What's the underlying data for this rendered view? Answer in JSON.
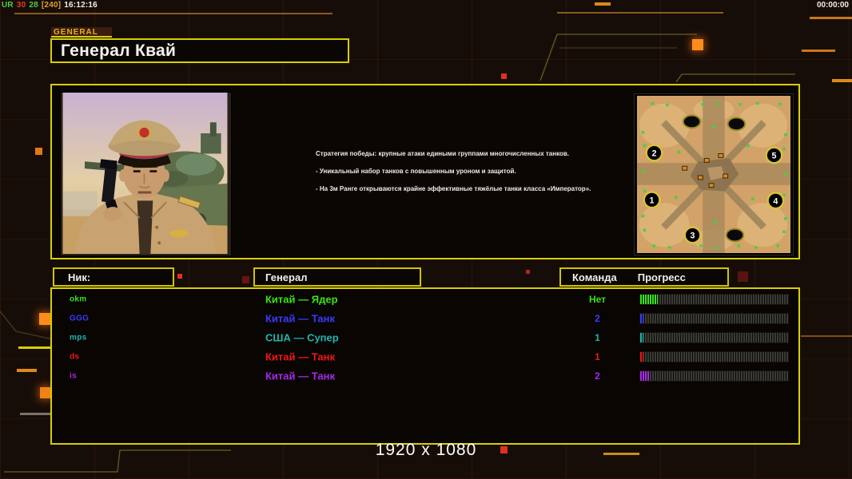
{
  "hud": {
    "stats": [
      {
        "text": "UR",
        "color": "#49d23c"
      },
      {
        "text": "30",
        "color": "#e23b22"
      },
      {
        "text": "28",
        "color": "#49d23c"
      },
      {
        "text": "[240]",
        "color": "#e2a12a"
      },
      {
        "text": "16:12:16",
        "color": "#f2ede6"
      }
    ],
    "timer": "00:00:00"
  },
  "header": {
    "tab_label": "GENERAL",
    "title": "Генерал Квай"
  },
  "profile": {
    "description": [
      "Стратегия победы: крупные атаки едиными группами многочисленных танков.",
      "- Уникальный набор танков с повышенным уроном и защитой.",
      "- На 3м Ранге открываются крайне эффективные тяжёлые танки класса «Император»."
    ],
    "minimap_spots": [
      "1",
      "2",
      "3",
      "4",
      "5"
    ]
  },
  "table": {
    "headers": {
      "nick": "Ник:",
      "general": "Генерал",
      "team": "Команда",
      "progress": "Прогресс"
    },
    "rows": [
      {
        "nick": "okm",
        "general": "Китай — Ядер",
        "team": "Нет",
        "color": "#38e418",
        "progress_pct": 12
      },
      {
        "nick": "GGG",
        "general": "Китай — Танк",
        "team": "2",
        "color": "#3a3aff",
        "progress_pct": 2
      },
      {
        "nick": "mps",
        "general": "США — Супер",
        "team": "1",
        "color": "#1fb6ae",
        "progress_pct": 2
      },
      {
        "nick": "ds",
        "general": "Китай — Танк",
        "team": "1",
        "color": "#f01818",
        "progress_pct": 2
      },
      {
        "nick": "is",
        "general": "Китай — Танк",
        "team": "2",
        "color": "#a62ae8",
        "progress_pct": 6
      }
    ]
  },
  "footer": {
    "resolution": "1920 x 1080"
  }
}
